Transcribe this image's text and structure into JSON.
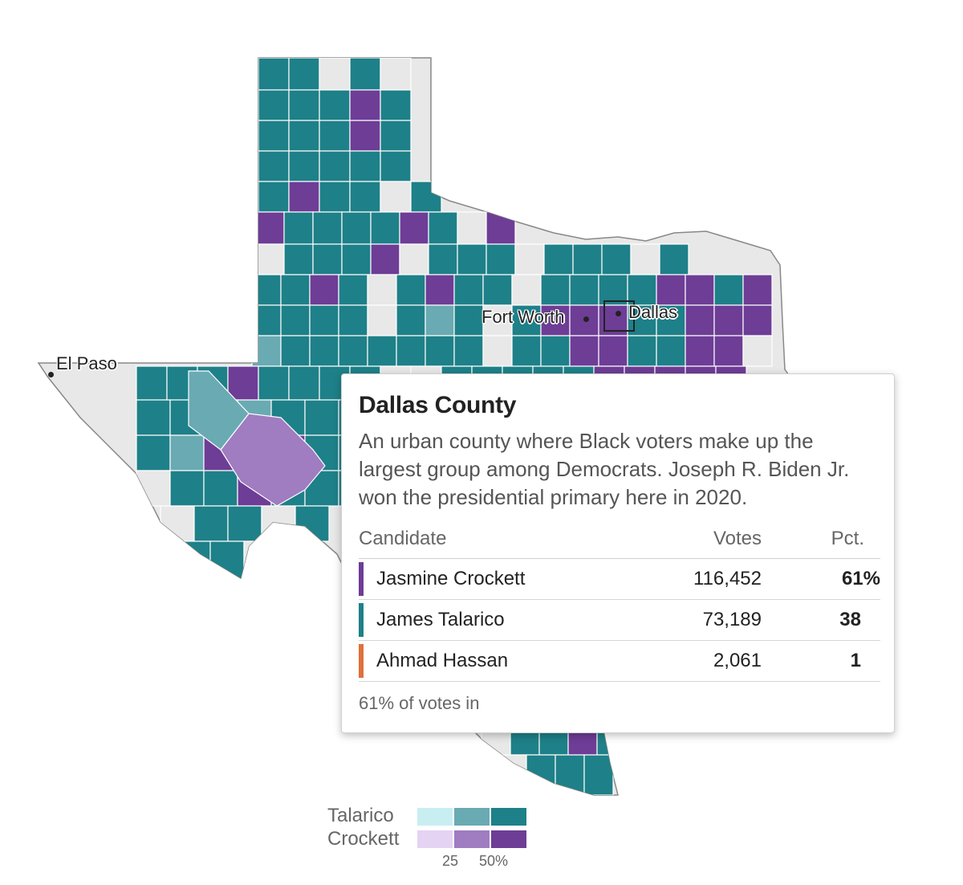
{
  "map": {
    "cities": [
      {
        "id": "el-paso",
        "name": "El Paso"
      },
      {
        "id": "fort-worth",
        "name": "Fort Worth"
      },
      {
        "id": "dallas",
        "name": "Dallas"
      }
    ],
    "colors": {
      "talarico_strong": "#1e8088",
      "talarico_medium": "#6aaab2",
      "talarico_light": "#c8eef2",
      "crockett_strong": "#6e3d96",
      "crockett_medium": "#a07cc0",
      "crockett_light": "#e4d3f2",
      "no_data": "#e8e8e8",
      "county_border": "#ffffff"
    }
  },
  "tooltip": {
    "title": "Dallas County",
    "description": "An urban county where Black voters make up the largest group among Democrats. Joseph R. Biden Jr. won the presidential primary here in 2020.",
    "columns": {
      "candidate": "Candidate",
      "votes": "Votes",
      "pct": "Pct."
    },
    "rows": [
      {
        "name": "Jasmine Crockett",
        "votes": "116,452",
        "pct": "61%",
        "color": "#6e3d96"
      },
      {
        "name": "James Talarico",
        "votes": "73,189",
        "pct": "38",
        "color": "#1e8088"
      },
      {
        "name": "Ahmad Hassan",
        "votes": "2,061",
        "pct": "1",
        "color": "#e0703a"
      }
    ],
    "footer": "61% of votes in"
  },
  "legend": {
    "talarico_label": "Talarico",
    "crockett_label": "Crockett",
    "tick_25": "25",
    "tick_50": "50%"
  }
}
